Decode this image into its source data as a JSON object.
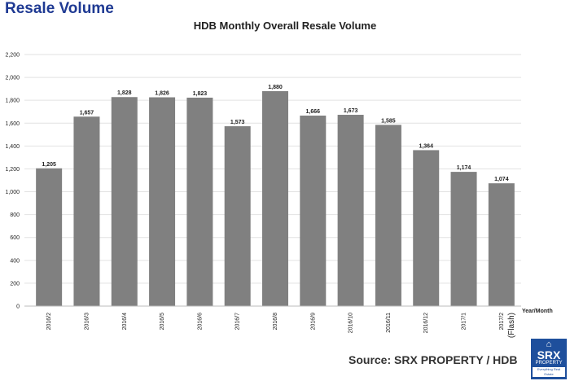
{
  "header": {
    "heading": "Resale Volume"
  },
  "footer": {
    "source": "Source:  SRX PROPERTY / HDB"
  },
  "logo": {
    "main": "SRX",
    "sub": "PROPERTY",
    "tagline": "Everything Real Estate",
    "icon": "house-icon",
    "color": "#1e4f9c"
  },
  "colors": {
    "bar": "#808080",
    "heading": "#1f3a93"
  },
  "chart_data": {
    "type": "bar",
    "title": "HDB Monthly Overall Resale Volume",
    "xlabel": "Year/Month",
    "ylabel": "",
    "categories": [
      "2016/2",
      "2016/3",
      "2016/4",
      "2016/5",
      "2016/6",
      "2016/7",
      "2016/8",
      "2016/9",
      "2016/10",
      "2016/11",
      "2016/12",
      "2017/1",
      "2017/2"
    ],
    "category_notes": {
      "2017/2": "(Flash)"
    },
    "values": [
      1205,
      1657,
      1828,
      1826,
      1823,
      1573,
      1880,
      1666,
      1673,
      1585,
      1364,
      1174,
      1074
    ],
    "value_labels": [
      "1,205",
      "1,657",
      "1,828",
      "1,826",
      "1,823",
      "1,573",
      "1,880",
      "1,666",
      "1,673",
      "1,585",
      "1,364",
      "1,174",
      "1,074"
    ],
    "ylim": [
      0,
      2200
    ],
    "yticks": [
      0,
      200,
      400,
      600,
      800,
      1000,
      1200,
      1400,
      1600,
      1800,
      2000,
      2200
    ],
    "ytick_labels": [
      "0",
      "200",
      "400",
      "600",
      "800",
      "1,000",
      "1,200",
      "1,400",
      "1,600",
      "1,800",
      "2,000",
      "2,200"
    ],
    "grid": true,
    "legend": "none"
  }
}
